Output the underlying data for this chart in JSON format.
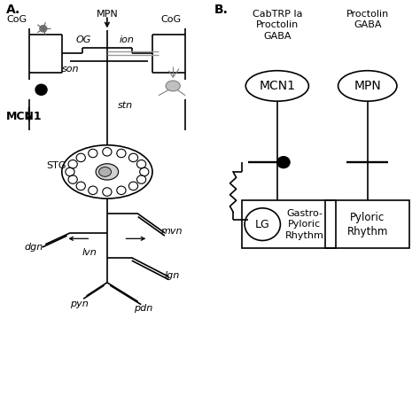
{
  "bg_color": "#ffffff",
  "line_color": "#000000",
  "fig_width": 4.74,
  "fig_height": 4.74,
  "panel_A_label": "A.",
  "panel_B_label": "B.",
  "labels": {
    "CoG_left": "CoG",
    "CoG_right": "CoG",
    "MPN_top": "MPN",
    "OG": "OG",
    "ion": "ion",
    "son": "son",
    "stn": "stn",
    "STG": "STG",
    "mvn": "mvn",
    "dgn": "dgn",
    "lvn": "lvn",
    "lgn": "lgn",
    "pyn": "pyn",
    "pdn": "pdn",
    "MCN1_label": "MCN1",
    "MCN1_circle": "MCN1",
    "MPN_circle": "MPN",
    "LG_circle": "LG",
    "CabTRP": "CabTRP Ia\nProctolin\nGABA",
    "Proctolin": "Proctolin\nGABA",
    "GastroPyloric": "Gastro-\nPyloric\nRhythm",
    "PyloricRhythm": "Pyloric\nRhythm"
  }
}
